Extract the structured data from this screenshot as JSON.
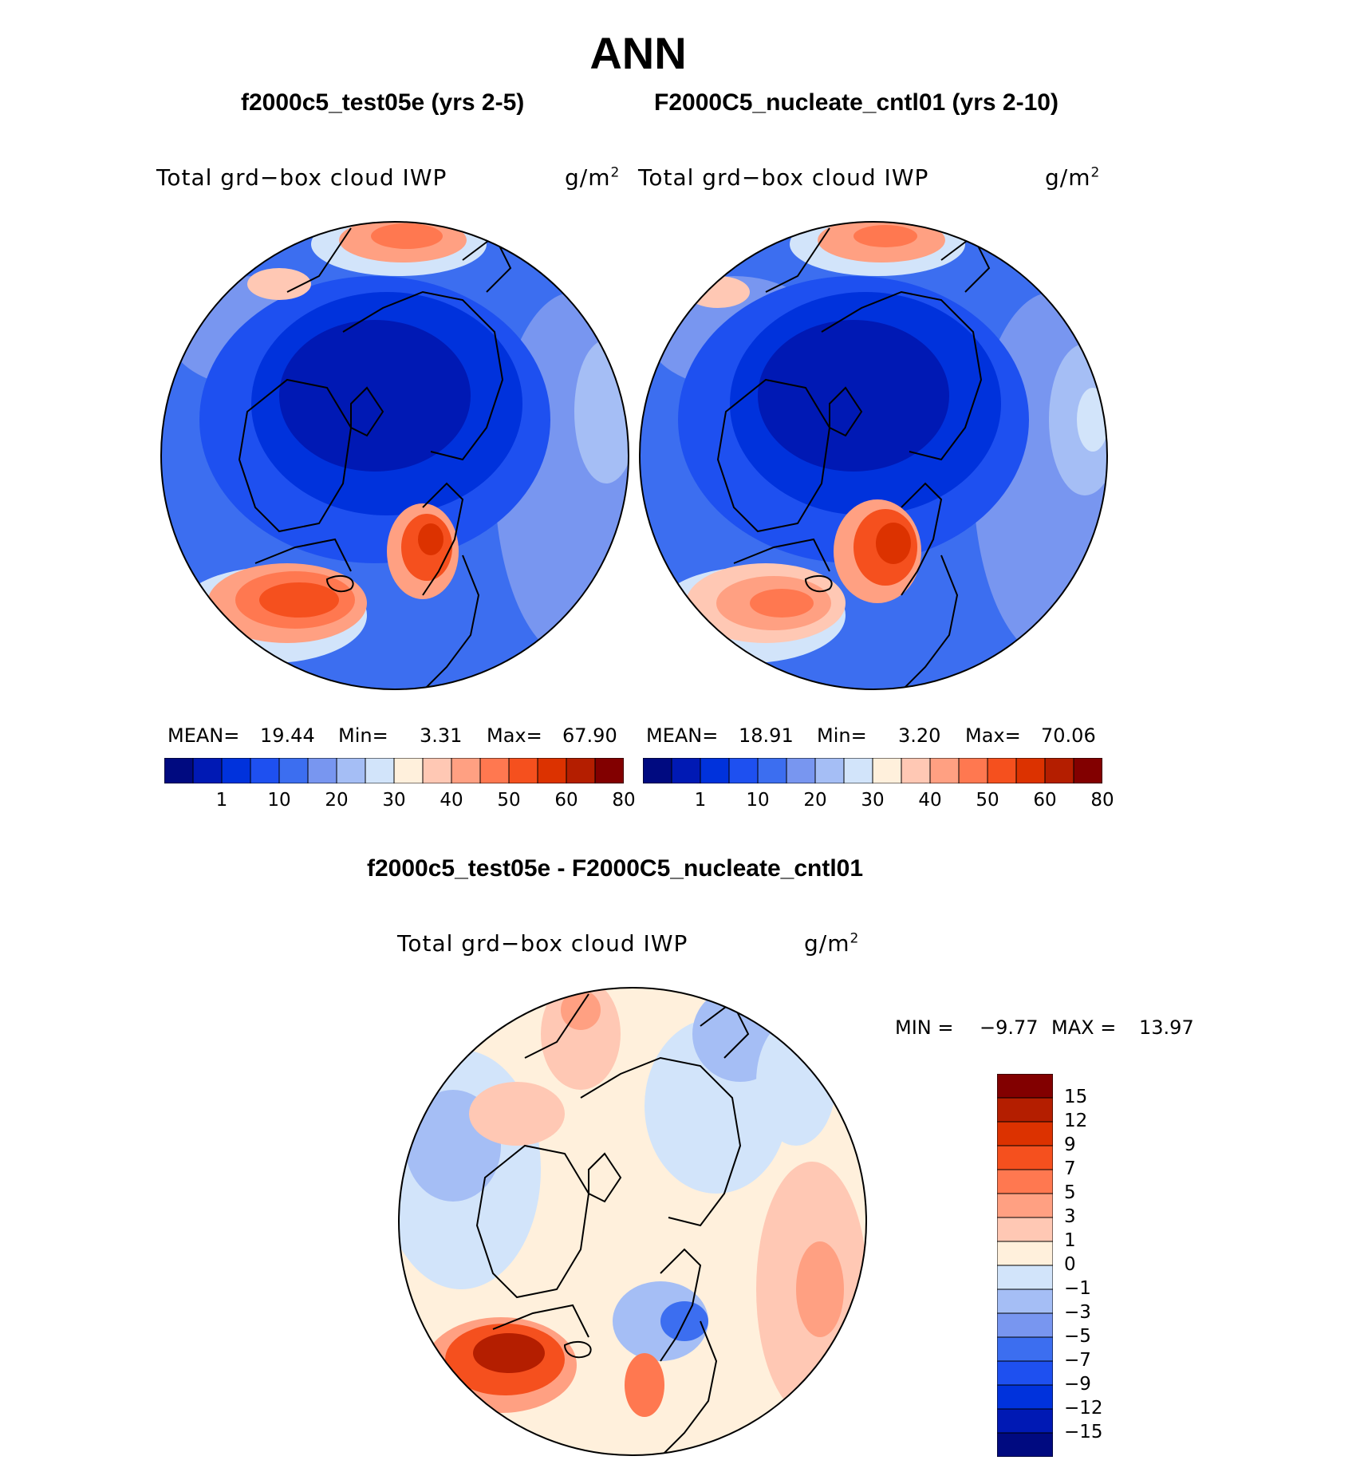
{
  "title": "ANN",
  "panels": [
    {
      "case_title": "f2000c5_test05e (yrs 2-5)",
      "variable": "Total grd−box cloud IWP",
      "units": "g/m",
      "units_exp": "2",
      "mean_label": "MEAN=",
      "mean": "19.44",
      "min_label": "Min=",
      "min": "3.31",
      "max_label": "Max=",
      "max": "67.90"
    },
    {
      "case_title": "F2000C5_nucleate_cntl01 (yrs 2-10)",
      "variable": "Total grd−box cloud IWP",
      "units": "g/m",
      "units_exp": "2",
      "mean_label": "MEAN=",
      "mean": "18.91",
      "min_label": "Min=",
      "min": "3.20",
      "max_label": "Max=",
      "max": "70.06"
    }
  ],
  "diff": {
    "case_title": "f2000c5_test05e - F2000C5_nucleate_cntl01",
    "variable": "Total grd−box cloud IWP",
    "units": "g/m",
    "units_exp": "2",
    "min_label": "MIN =",
    "min": "−9.77",
    "max_label": "MAX =",
    "max": "13.97"
  },
  "colorbar_top": {
    "labels": [
      "1",
      "10",
      "20",
      "30",
      "40",
      "50",
      "60",
      "80"
    ],
    "colors": [
      "#000a80",
      "#0019b4",
      "#0032dc",
      "#1e50f0",
      "#3c6ef0",
      "#7896f0",
      "#a5bef5",
      "#d2e4fa",
      "#fff0dc",
      "#ffc8b4",
      "#ffa082",
      "#ff7850",
      "#f5501e",
      "#dc3200",
      "#b41e00",
      "#820000"
    ]
  },
  "colorbar_diff": {
    "labels": [
      "15",
      "12",
      "9",
      "7",
      "5",
      "3",
      "1",
      "0",
      "−1",
      "−3",
      "−5",
      "−7",
      "−9",
      "−12",
      "−15"
    ],
    "colors": [
      "#820000",
      "#b41e00",
      "#dc3200",
      "#f5501e",
      "#ff7850",
      "#ffa082",
      "#ffc8b4",
      "#fff0dc",
      "#d2e4fa",
      "#a5bef5",
      "#7896f0",
      "#3c6ef0",
      "#1e50f0",
      "#0032dc",
      "#0019b4",
      "#000a80"
    ]
  },
  "palette": {
    "deep_blue": "#0032dc",
    "mid_blue": "#1e50f0",
    "light_blue": "#7896f0",
    "red": "#f5501e",
    "dark_red": "#b41e00",
    "cream": "#fff0dc"
  }
}
